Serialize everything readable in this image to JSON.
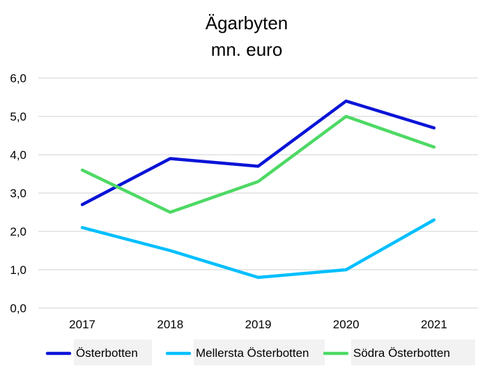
{
  "chart_data": {
    "type": "line",
    "title": "Ägarbyten",
    "subtitle": "mn. euro",
    "xlabel": "",
    "ylabel": "",
    "categories": [
      "2017",
      "2018",
      "2019",
      "2020",
      "2021"
    ],
    "ylim": [
      0,
      6
    ],
    "yticks": [
      "0,0",
      "1,0",
      "2,0",
      "3,0",
      "4,0",
      "5,0",
      "6,0"
    ],
    "grid": true,
    "legend_position": "bottom",
    "series": [
      {
        "name": "Österbotten",
        "color": "#0a14d6",
        "values": [
          2.7,
          3.9,
          3.7,
          5.4,
          4.7
        ]
      },
      {
        "name": "Mellersta Österbotten",
        "color": "#00bfff",
        "values": [
          2.1,
          1.5,
          0.8,
          1.0,
          2.3
        ]
      },
      {
        "name": "Södra Österbotten",
        "color": "#4dd964",
        "values": [
          3.6,
          2.5,
          3.3,
          5.0,
          4.2
        ]
      }
    ]
  }
}
